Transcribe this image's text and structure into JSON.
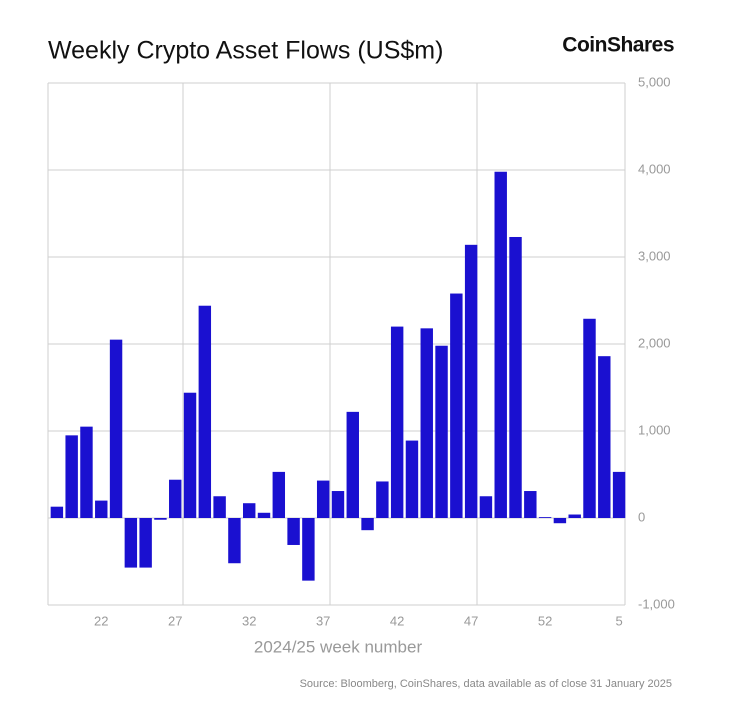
{
  "brand": "CoinShares",
  "chart_data": {
    "type": "bar",
    "title": "Weekly Crypto Asset Flows (US$m)",
    "x_label": "2024/25 week number",
    "source": "Source: Bloomberg, CoinShares, data available as of close 31 January 2025",
    "categories": [
      null,
      null,
      null,
      "22",
      null,
      null,
      null,
      null,
      "27",
      null,
      null,
      null,
      null,
      "32",
      null,
      null,
      null,
      null,
      "37",
      null,
      null,
      null,
      null,
      "42",
      null,
      null,
      null,
      null,
      "47",
      null,
      null,
      null,
      null,
      "52",
      null,
      null,
      null,
      null,
      "5"
    ],
    "values": [
      130,
      950,
      1050,
      200,
      2050,
      -570,
      -570,
      -20,
      440,
      1440,
      2440,
      250,
      -520,
      170,
      60,
      530,
      -310,
      -720,
      430,
      310,
      1220,
      -140,
      420,
      2200,
      890,
      2180,
      1980,
      2580,
      3140,
      250,
      3980,
      3230,
      310,
      10,
      -60,
      40,
      2290,
      1860,
      530
    ],
    "color": "#1a10d0",
    "ylim": [
      -1000,
      5000
    ],
    "yticks": [
      {
        "value": -1000,
        "label": "-1,000"
      },
      0,
      {
        "value": 1000,
        "label": "1,000"
      },
      {
        "value": 2000,
        "label": "2,000"
      },
      {
        "value": 3000,
        "label": "3,000"
      },
      {
        "value": 4000,
        "label": "4,000"
      },
      {
        "value": 5000,
        "label": "5,000"
      }
    ],
    "grid": true
  }
}
